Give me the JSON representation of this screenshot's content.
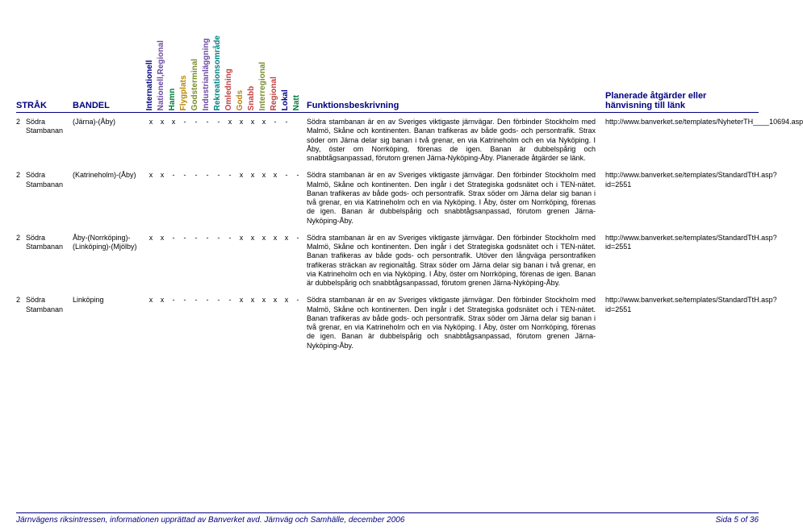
{
  "headers": {
    "strak": "STRÅK",
    "bandel": "BANDEL",
    "funk": "Funktionsbeskrivning",
    "link": "Planerade åtgärder eller hänvisning till länk"
  },
  "flag_headers": [
    "Internationell",
    "Nationell,Regional",
    "Hamn",
    "Flygplats",
    "Godsterminal",
    "Industrianläggning",
    "Rekreationsområde",
    "Omledning",
    "Gods",
    "Snabb",
    "Interregional",
    "Regional",
    "Lokal",
    "Natt"
  ],
  "rows": [
    {
      "num": "2",
      "strak": "Södra Stambanan",
      "bandel": "(Järna)-(Åby)",
      "flags": [
        "x",
        "x",
        "x",
        "-",
        "-",
        "-",
        "-",
        "x",
        "x",
        "x",
        "x",
        "-",
        "-",
        " "
      ],
      "funk": "Södra stambanan är en av Sveriges viktigaste järnvägar. Den förbinder Stockholm med Malmö, Skåne och kontinenten. Banan trafikeras av både gods- och persontrafik. Strax söder om Järna delar sig banan i två grenar, en via Katrineholm och en via Nyköping. I Åby, öster om Norrköping, förenas de igen. Banan är dubbelspårig och snabbtågsanpassad, förutom grenen Järna-Nyköping-Åby. Planerade åtgärder se länk.",
      "link": "http://www.banverket.se/templates/NyheterTH____10694.asp"
    },
    {
      "num": "2",
      "strak": "Södra Stambanan",
      "bandel": "(Katrineholm)-(Åby)",
      "flags": [
        "x",
        "x",
        "-",
        "-",
        "-",
        "-",
        "-",
        "-",
        "x",
        "x",
        "x",
        "x",
        "-",
        "-"
      ],
      "funk": "Södra stambanan är en av Sveriges viktigaste järnvägar. Den förbinder Stockholm med Malmö, Skåne och kontinenten. Den ingår i det Strategiska godsnätet och i TEN-nätet. Banan trafikeras av både gods- och persontrafik. Strax söder om Järna delar sig banan i två grenar, en via Katrineholm och en via Nyköping. I Åby, öster om Norrköping, förenas de igen. Banan är dubbelspårig och snabbtågsanpassad, förutom grenen Järna-Nyköping-Åby.",
      "link": "http://www.banverket.se/templates/StandardTtH.asp?id=2551"
    },
    {
      "num": "2",
      "strak": "Södra Stambanan",
      "bandel": "Åby-(Norrköping)-(Linköping)-(Mjölby)",
      "flags": [
        "x",
        "x",
        "-",
        "-",
        "-",
        "-",
        "-",
        "-",
        "x",
        "x",
        "x",
        "x",
        "x",
        "-"
      ],
      "funk": "Södra stambanan är en av Sveriges viktigaste järnvägar. Den förbinder Stockholm med Malmö, Skåne och kontinenten. Den ingår i det Strategiska godsnätet och i TEN-nätet. Banan trafikeras av både gods- och persontrafik. Utöver den långväga persontrafiken trafikeras sträckan av regionaltåg. Strax söder om Järna delar sig banan i två grenar, en via Katrineholm och en via Nyköping. I Åby, öster om Norrköping, förenas de igen. Banan är dubbelspårig och snabbtågsanpassad, förutom grenen Järna-Nyköping-Åby.",
      "link": "http://www.banverket.se/templates/StandardTtH.asp?id=2551"
    },
    {
      "num": "2",
      "strak": "Södra Stambanan",
      "bandel": "Linköping",
      "flags": [
        "x",
        "x",
        "-",
        "-",
        "-",
        "-",
        "-",
        "-",
        "x",
        "x",
        "x",
        "x",
        "x",
        "-"
      ],
      "funk": "Södra stambanan är en av Sveriges viktigaste järnvägar. Den förbinder Stockholm med Malmö, Skåne och kontinenten. Den ingår i det Strategiska godsnätet och i TEN-nätet. Banan trafikeras av både gods- och persontrafik. Strax söder om Järna delar sig banan i två grenar, en via Katrineholm och en via Nyköping. I Åby, öster om Norrköping, förenas de igen. Banan är dubbelspårig och snabbtågsanpassad, förutom grenen Järna-Nyköping-Åby.",
      "link": "http://www.banverket.se/templates/StandardTtH.asp?id=2551"
    }
  ],
  "footer": {
    "left": "Järnvägens riksintressen, informationen upprättad av Banverket avd. Järnväg och Samhälle, december 2006",
    "right": "Sida 5 of 36"
  }
}
